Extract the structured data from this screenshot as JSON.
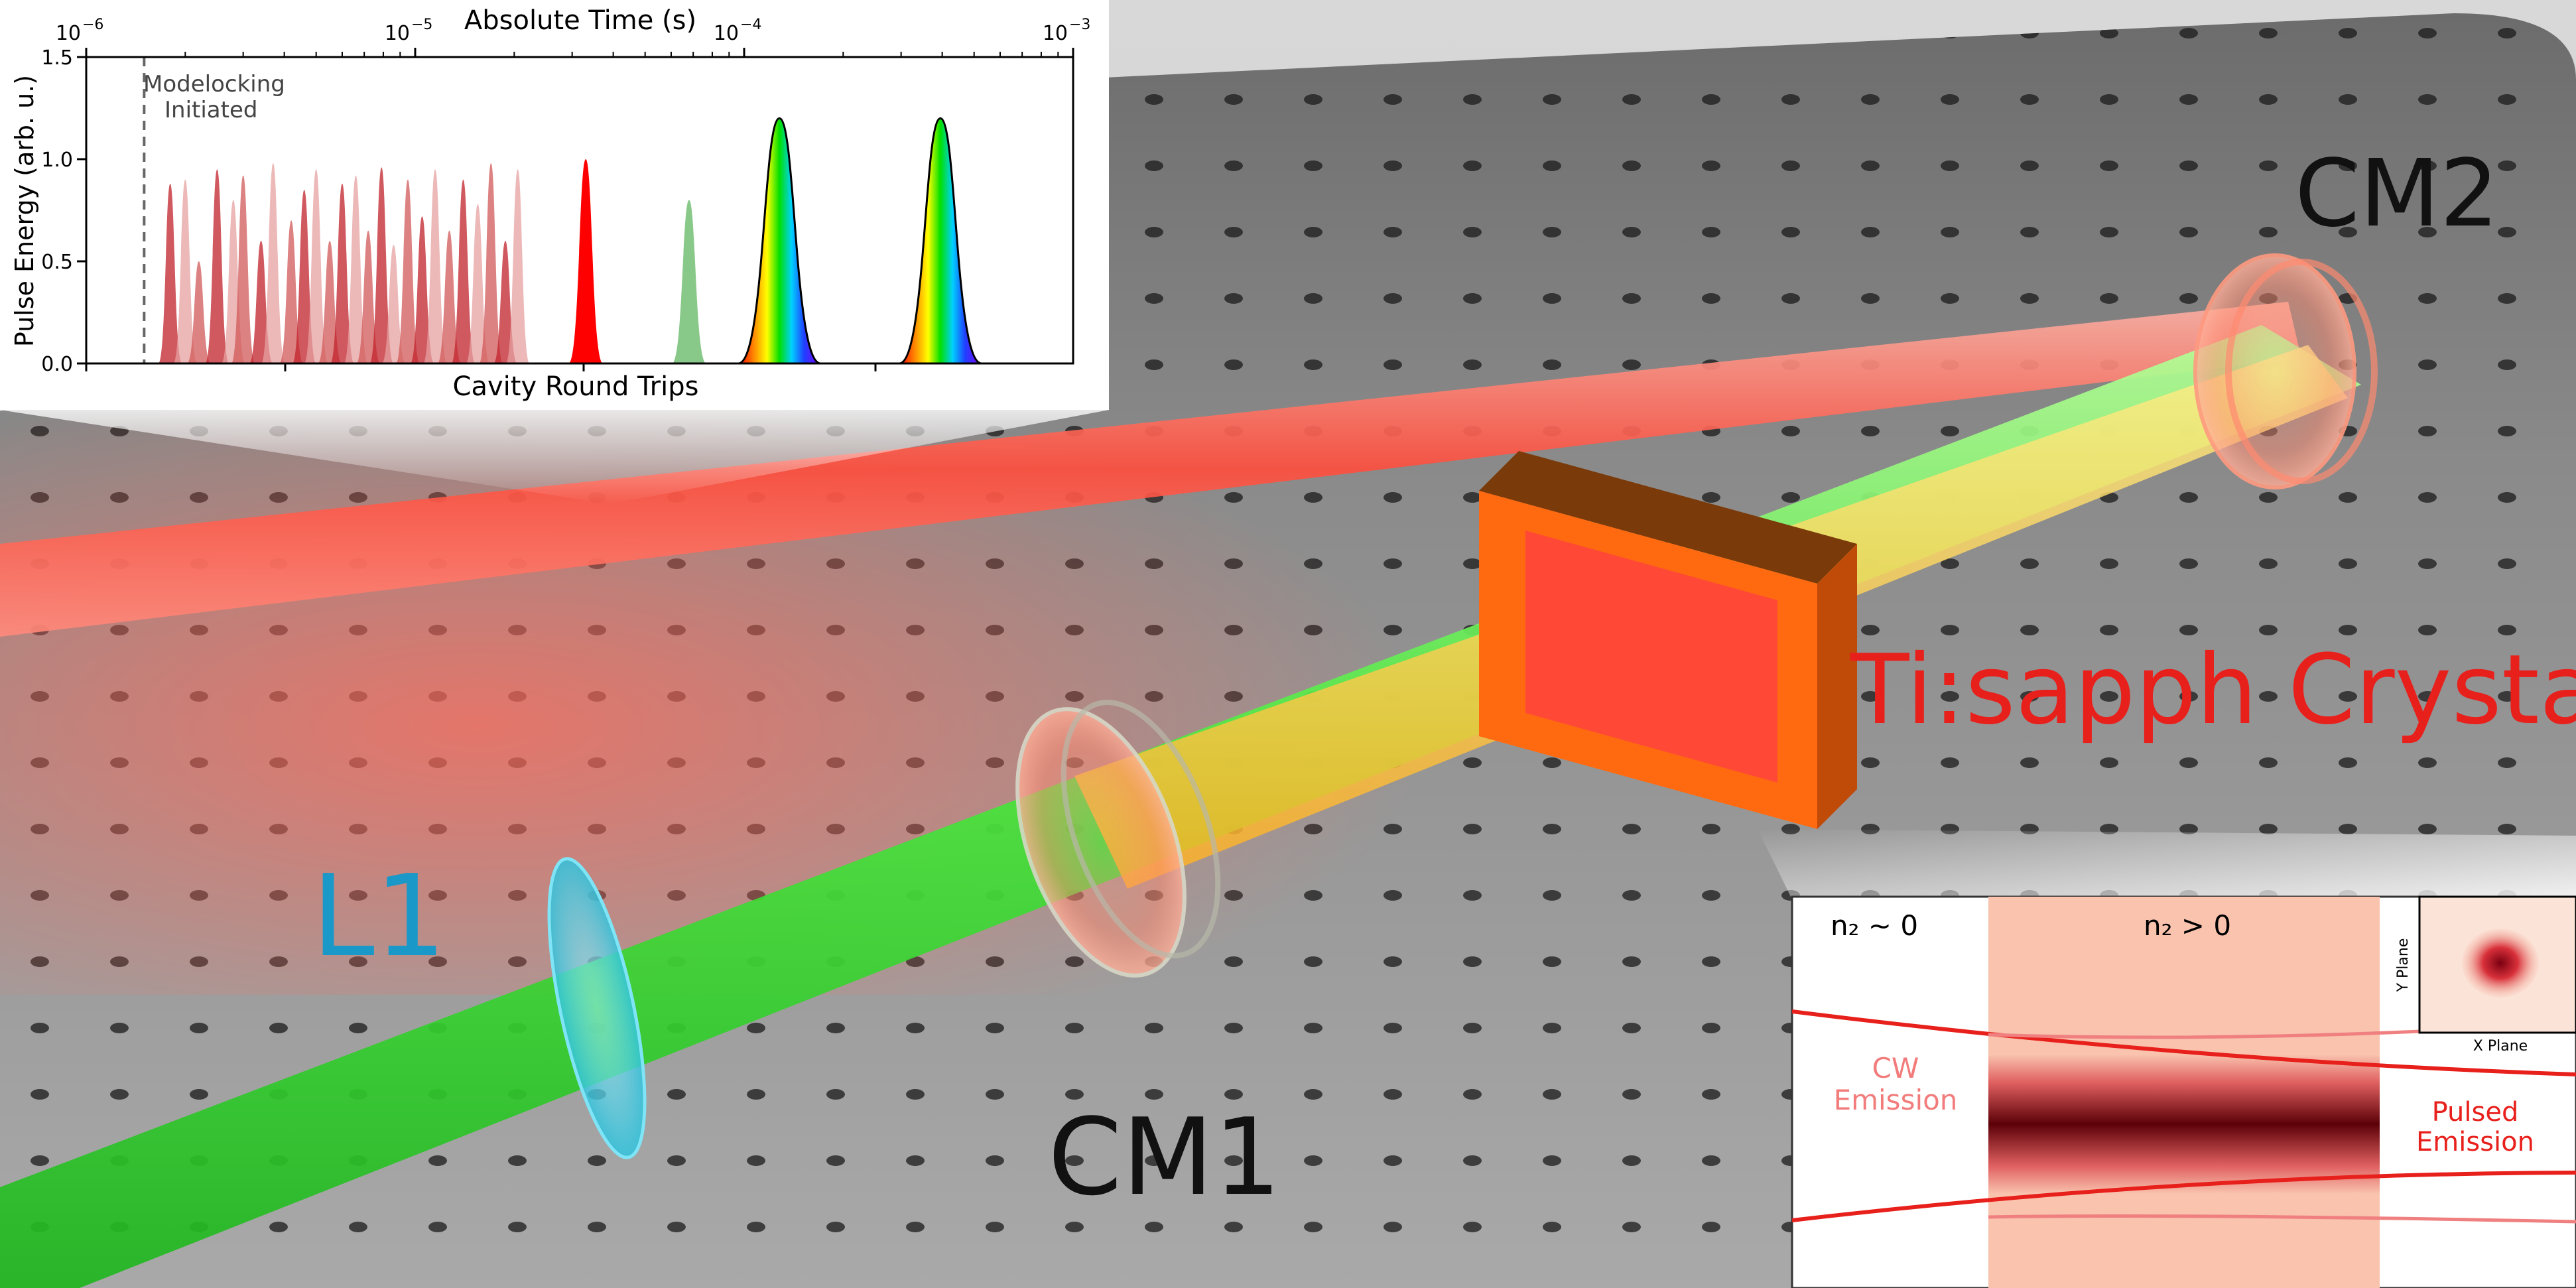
{
  "scene": {
    "labels": {
      "cm2": "CM2",
      "cm1": "CM1",
      "l1": "L1",
      "crystal": "Ti:sapph Crystal"
    },
    "colors": {
      "pump_beam": "#3ee63a",
      "laser_beam": "#ff5c4d",
      "crystal": "#ff6a10",
      "lens": "#4fd6e8",
      "crystal_label": "#e8201c",
      "l1_label": "#1a98c8",
      "table": "#8a8a8a"
    }
  },
  "inset_top": {
    "top_axis_label": "Absolute Time (s)",
    "bottom_axis_label": "Cavity Round Trips",
    "y_axis_label": "Pulse Energy (arb. u.)",
    "annotation": [
      "Modelocking",
      "Initiated"
    ],
    "top_ticks": [
      {
        "base": "10",
        "exp": "−6",
        "value": 1e-06
      },
      {
        "base": "10",
        "exp": "−5",
        "value": 1e-05
      },
      {
        "base": "10",
        "exp": "−4",
        "value": 0.0001
      },
      {
        "base": "10",
        "exp": "−3",
        "value": 0.001
      }
    ],
    "y_ticks": [
      "0.0",
      "0.5",
      "1.0",
      "1.5"
    ]
  },
  "chart_data": {
    "type": "area",
    "xscale": "log",
    "xlim": [
      1e-06,
      0.001
    ],
    "ylim": [
      0,
      1.5
    ],
    "xlabel_top": "Absolute Time (s)",
    "xlabel_bottom": "Cavity Round Trips",
    "ylabel": "Pulse Energy (arb. u.)",
    "modelocking_initiated_time": 1.5e-06,
    "noise_pulses": {
      "t": [
        1.8e-06,
        2e-06,
        2.2e-06,
        2.5e-06,
        2.8e-06,
        3e-06,
        3.4e-06,
        3.7e-06,
        4.2e-06,
        4.6e-06,
        5e-06,
        5.5e-06,
        6e-06,
        6.6e-06,
        7.2e-06,
        7.9e-06,
        8.6e-06,
        9.5e-06,
        1.05e-05,
        1.15e-05,
        1.27e-05,
        1.4e-05,
        1.55e-05,
        1.7e-05,
        1.88e-05,
        2.05e-05
      ],
      "energy": [
        0.88,
        0.9,
        0.5,
        0.95,
        0.8,
        0.92,
        0.6,
        0.98,
        0.7,
        0.85,
        0.95,
        0.6,
        0.88,
        0.92,
        0.65,
        0.96,
        0.58,
        0.9,
        0.72,
        0.95,
        0.65,
        0.9,
        0.78,
        0.98,
        0.6,
        0.95
      ]
    },
    "highlighted_pulses": [
      {
        "t": 3.3e-05,
        "energy": 1.0,
        "color": "#ff0000"
      },
      {
        "t": 6.8e-05,
        "energy": 0.8,
        "color": "#88c888"
      },
      {
        "t": 0.000128,
        "energy": 1.2,
        "color": "rainbow"
      },
      {
        "t": 0.000395,
        "energy": 1.2,
        "color": "rainbow"
      }
    ]
  },
  "inset_bottom": {
    "region_left": "n₂ ~ 0",
    "region_right": "n₂ > 0",
    "cw_emission": [
      "CW",
      "Emission"
    ],
    "pulsed_emission": [
      "Pulsed",
      "Emission"
    ],
    "x_plane": "X Plane",
    "y_plane": "Y Plane"
  }
}
